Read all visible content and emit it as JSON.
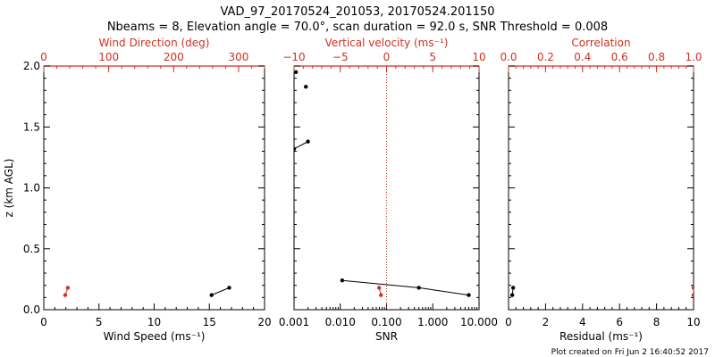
{
  "title_line1": "VAD_97_20170524_201053, 20170524.201150",
  "title_line2": "Nbeams = 8, Elevation angle = 70.0°, scan duration = 92.0 s, SNR Threshold = 0.008",
  "credit": "Plot created on Fri Jun  2 16:40:52 2017",
  "colors": {
    "black": "#000000",
    "red": "#d03020"
  },
  "chart_data": [
    {
      "type": "line",
      "panel": "left",
      "ylabel": "z (km AGL)",
      "ylim": [
        0,
        2
      ],
      "yticks": [
        "0.0",
        "0.5",
        "1.0",
        "1.5",
        "2.0"
      ],
      "bottom_axis": {
        "label": "Wind Speed (ms⁻¹)",
        "range": [
          0,
          20
        ],
        "ticks": [
          "0",
          "5",
          "10",
          "15",
          "20"
        ]
      },
      "top_axis": {
        "label": "Wind Direction (deg)",
        "range": [
          0,
          340
        ],
        "ticks": [
          "0",
          "100",
          "200",
          "300"
        ]
      },
      "series": [
        {
          "axis": "bottom",
          "color": "#000000",
          "points": [
            [
              15.2,
              0.12
            ],
            [
              16.8,
              0.18
            ]
          ]
        },
        {
          "axis": "top",
          "color": "#d03020",
          "points": [
            [
              33,
              0.12
            ],
            [
              37,
              0.18
            ]
          ]
        }
      ]
    },
    {
      "type": "line",
      "panel": "middle",
      "ylim": [
        0,
        2
      ],
      "bottom_axis": {
        "label": "SNR",
        "scale": "log",
        "range": [
          0.001,
          10
        ],
        "ticks": [
          "0.001",
          "0.010",
          "0.100",
          "1.000",
          "10.000"
        ]
      },
      "top_axis": {
        "label": "Vertical velocity (ms⁻¹)",
        "range": [
          -10,
          10
        ],
        "ticks": [
          "−10",
          "−5",
          "0",
          "5",
          "10"
        ],
        "zero_line": "dotted"
      },
      "series": [
        {
          "axis": "bottom",
          "color": "#000000",
          "points": [
            [
              0.0011,
              1.95
            ]
          ]
        },
        {
          "axis": "bottom",
          "color": "#000000",
          "points": [
            [
              0.0018,
              1.83
            ]
          ]
        },
        {
          "axis": "bottom",
          "color": "#000000",
          "points": [
            [
              0.001,
              1.32
            ],
            [
              0.002,
              1.38
            ]
          ]
        },
        {
          "axis": "bottom",
          "color": "#000000",
          "points": [
            [
              0.011,
              0.24
            ],
            [
              0.5,
              0.18
            ],
            [
              6.0,
              0.12
            ]
          ]
        },
        {
          "axis": "top",
          "color": "#d03020",
          "points": [
            [
              -0.6,
              0.12
            ],
            [
              -0.8,
              0.18
            ]
          ]
        }
      ]
    },
    {
      "type": "line",
      "panel": "right",
      "ylim": [
        0,
        2
      ],
      "bottom_axis": {
        "label": "Residual (ms⁻¹)",
        "range": [
          0,
          10
        ],
        "ticks": [
          "0",
          "2",
          "4",
          "6",
          "8",
          "10"
        ]
      },
      "top_axis": {
        "label": "Correlation",
        "range": [
          0,
          1
        ],
        "ticks": [
          "0.0",
          "0.2",
          "0.4",
          "0.6",
          "0.8",
          "1.0"
        ]
      },
      "series": [
        {
          "axis": "bottom",
          "color": "#000000",
          "points": [
            [
              0.2,
              0.12
            ],
            [
              0.25,
              0.18
            ]
          ]
        },
        {
          "axis": "top",
          "color": "#d03020",
          "points": [
            [
              1.0,
              0.12
            ],
            [
              1.0,
              0.18
            ]
          ]
        }
      ]
    }
  ]
}
